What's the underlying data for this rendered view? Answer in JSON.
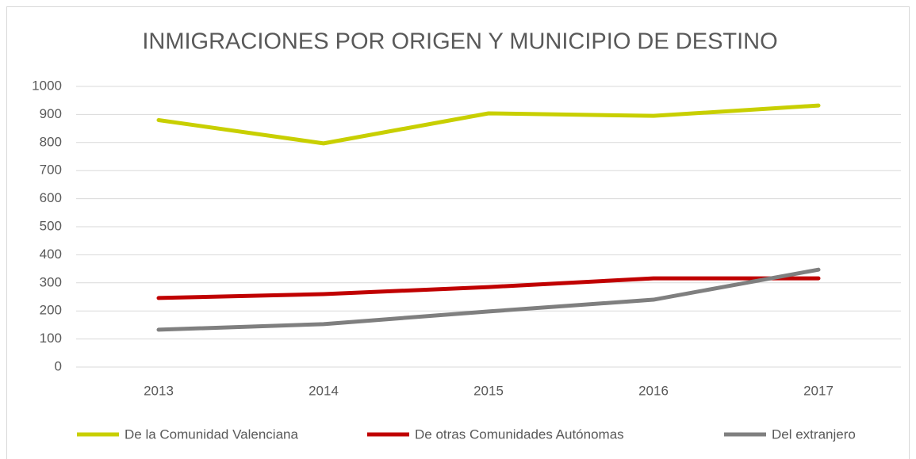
{
  "chart_data": {
    "type": "line",
    "title": "INMIGRACIONES POR ORIGEN Y MUNICIPIO DE DESTINO",
    "categories": [
      "2013",
      "2014",
      "2015",
      "2016",
      "2017"
    ],
    "series": [
      {
        "name": "De la Comunidad Valenciana",
        "color": "#c8cf00",
        "values": [
          880,
          797,
          904,
          895,
          932
        ]
      },
      {
        "name": "De otras Comunidades Autónomas",
        "color": "#c00000",
        "values": [
          246,
          260,
          285,
          316,
          316
        ]
      },
      {
        "name": "Del extranjero",
        "color": "#7f7f7f",
        "values": [
          133,
          153,
          198,
          240,
          347
        ]
      }
    ],
    "ylim": [
      0,
      1000
    ],
    "yticks": [
      0,
      100,
      200,
      300,
      400,
      500,
      600,
      700,
      800,
      900,
      1000
    ],
    "grid": true,
    "legend": "bottom"
  }
}
